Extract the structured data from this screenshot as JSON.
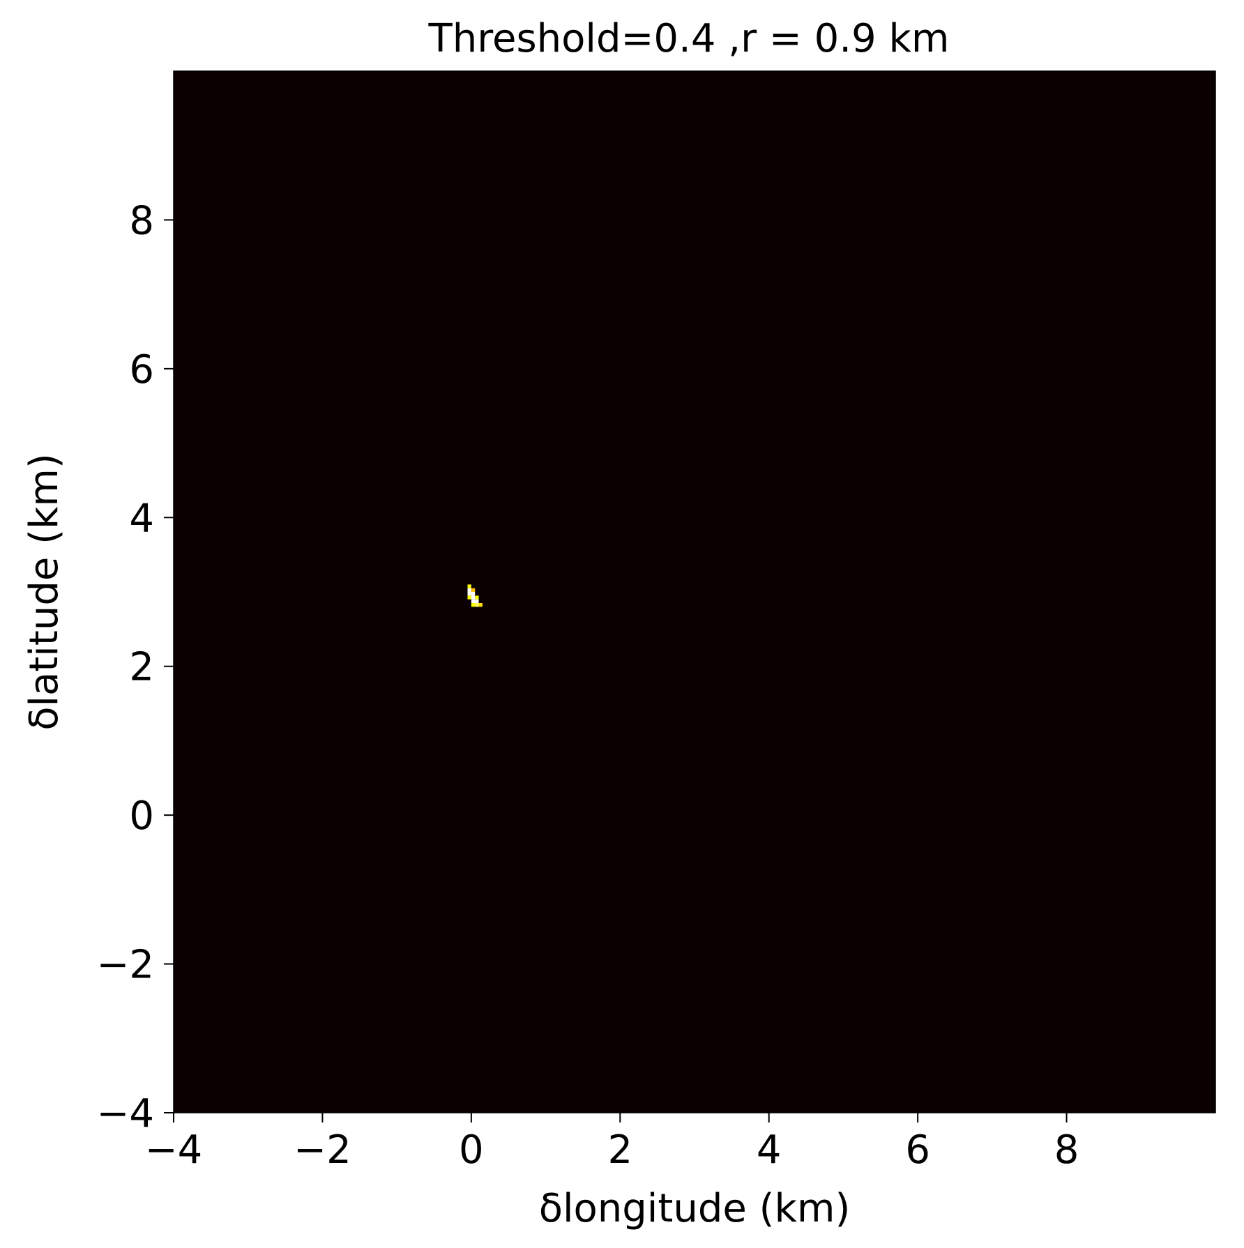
{
  "chart_data": {
    "type": "heatmap",
    "title": "Threshold=0.4 ,r = 0.9 km",
    "xlabel": "δlongitude (km)",
    "ylabel": "δlatitude (km)",
    "xlim": [
      -4,
      10
    ],
    "ylim": [
      -4,
      10
    ],
    "xticks": [
      -4,
      -2,
      0,
      2,
      4,
      6,
      8
    ],
    "yticks": [
      -4,
      -2,
      0,
      2,
      4,
      6,
      8
    ],
    "xtick_labels": [
      "−4",
      "−2",
      "0",
      "2",
      "4",
      "6",
      "8"
    ],
    "ytick_labels": [
      "−4",
      "−2",
      "0",
      "2",
      "4",
      "6",
      "8"
    ],
    "grid": false,
    "background_color": "#0b0000",
    "colormap": "hot",
    "cell_size_km": 0.05,
    "cells": [
      {
        "x": -0.05,
        "y": 3.05,
        "value": 0.75
      },
      {
        "x": -0.05,
        "y": 3.0,
        "value": 1.0
      },
      {
        "x": 0.0,
        "y": 3.0,
        "value": 0.65
      },
      {
        "x": -0.05,
        "y": 2.95,
        "value": 1.0
      },
      {
        "x": 0.0,
        "y": 2.95,
        "value": 1.0
      },
      {
        "x": -0.05,
        "y": 2.9,
        "value": 0.75
      },
      {
        "x": 0.0,
        "y": 2.9,
        "value": 1.0
      },
      {
        "x": 0.05,
        "y": 2.9,
        "value": 0.75
      },
      {
        "x": 0.0,
        "y": 2.85,
        "value": 1.0
      },
      {
        "x": 0.05,
        "y": 2.85,
        "value": 1.0
      },
      {
        "x": 0.0,
        "y": 2.8,
        "value": 0.75
      },
      {
        "x": 0.05,
        "y": 2.8,
        "value": 0.85
      },
      {
        "x": 0.1,
        "y": 2.8,
        "value": 0.7
      }
    ]
  }
}
